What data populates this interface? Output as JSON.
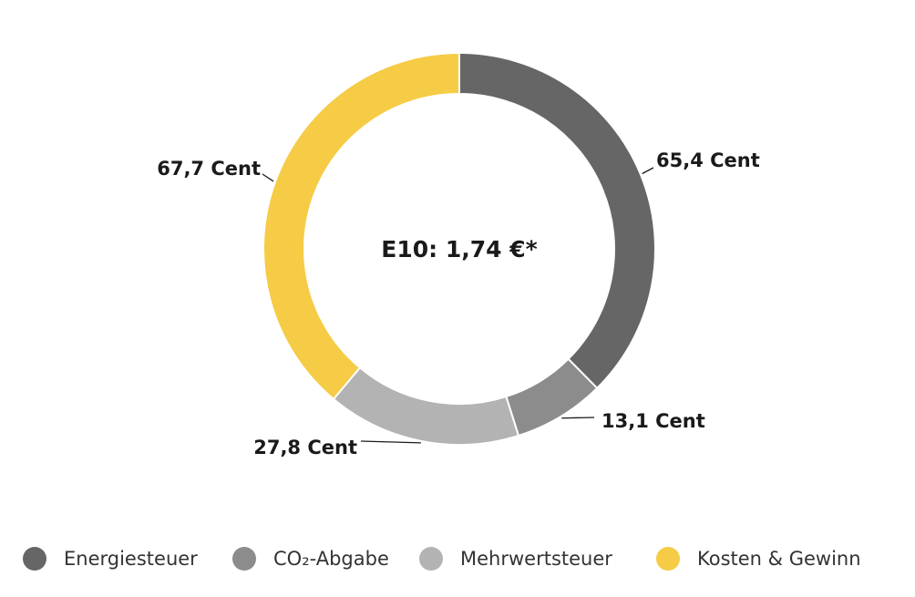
{
  "chart_data": {
    "type": "donut",
    "center_label": "E10: 1,74 €*",
    "categories": [
      "Energiesteuer",
      "CO₂-Abgabe",
      "Mehrwertsteuer",
      "Kosten & Gewinn"
    ],
    "values": [
      65.4,
      13.1,
      27.8,
      67.7
    ],
    "value_labels": [
      "65,4 Cent",
      "13,1 Cent",
      "27,8 Cent",
      "67,7 Cent"
    ],
    "colors": [
      "#666666",
      "#8c8c8c",
      "#b3b3b3",
      "#f6cb46"
    ]
  }
}
